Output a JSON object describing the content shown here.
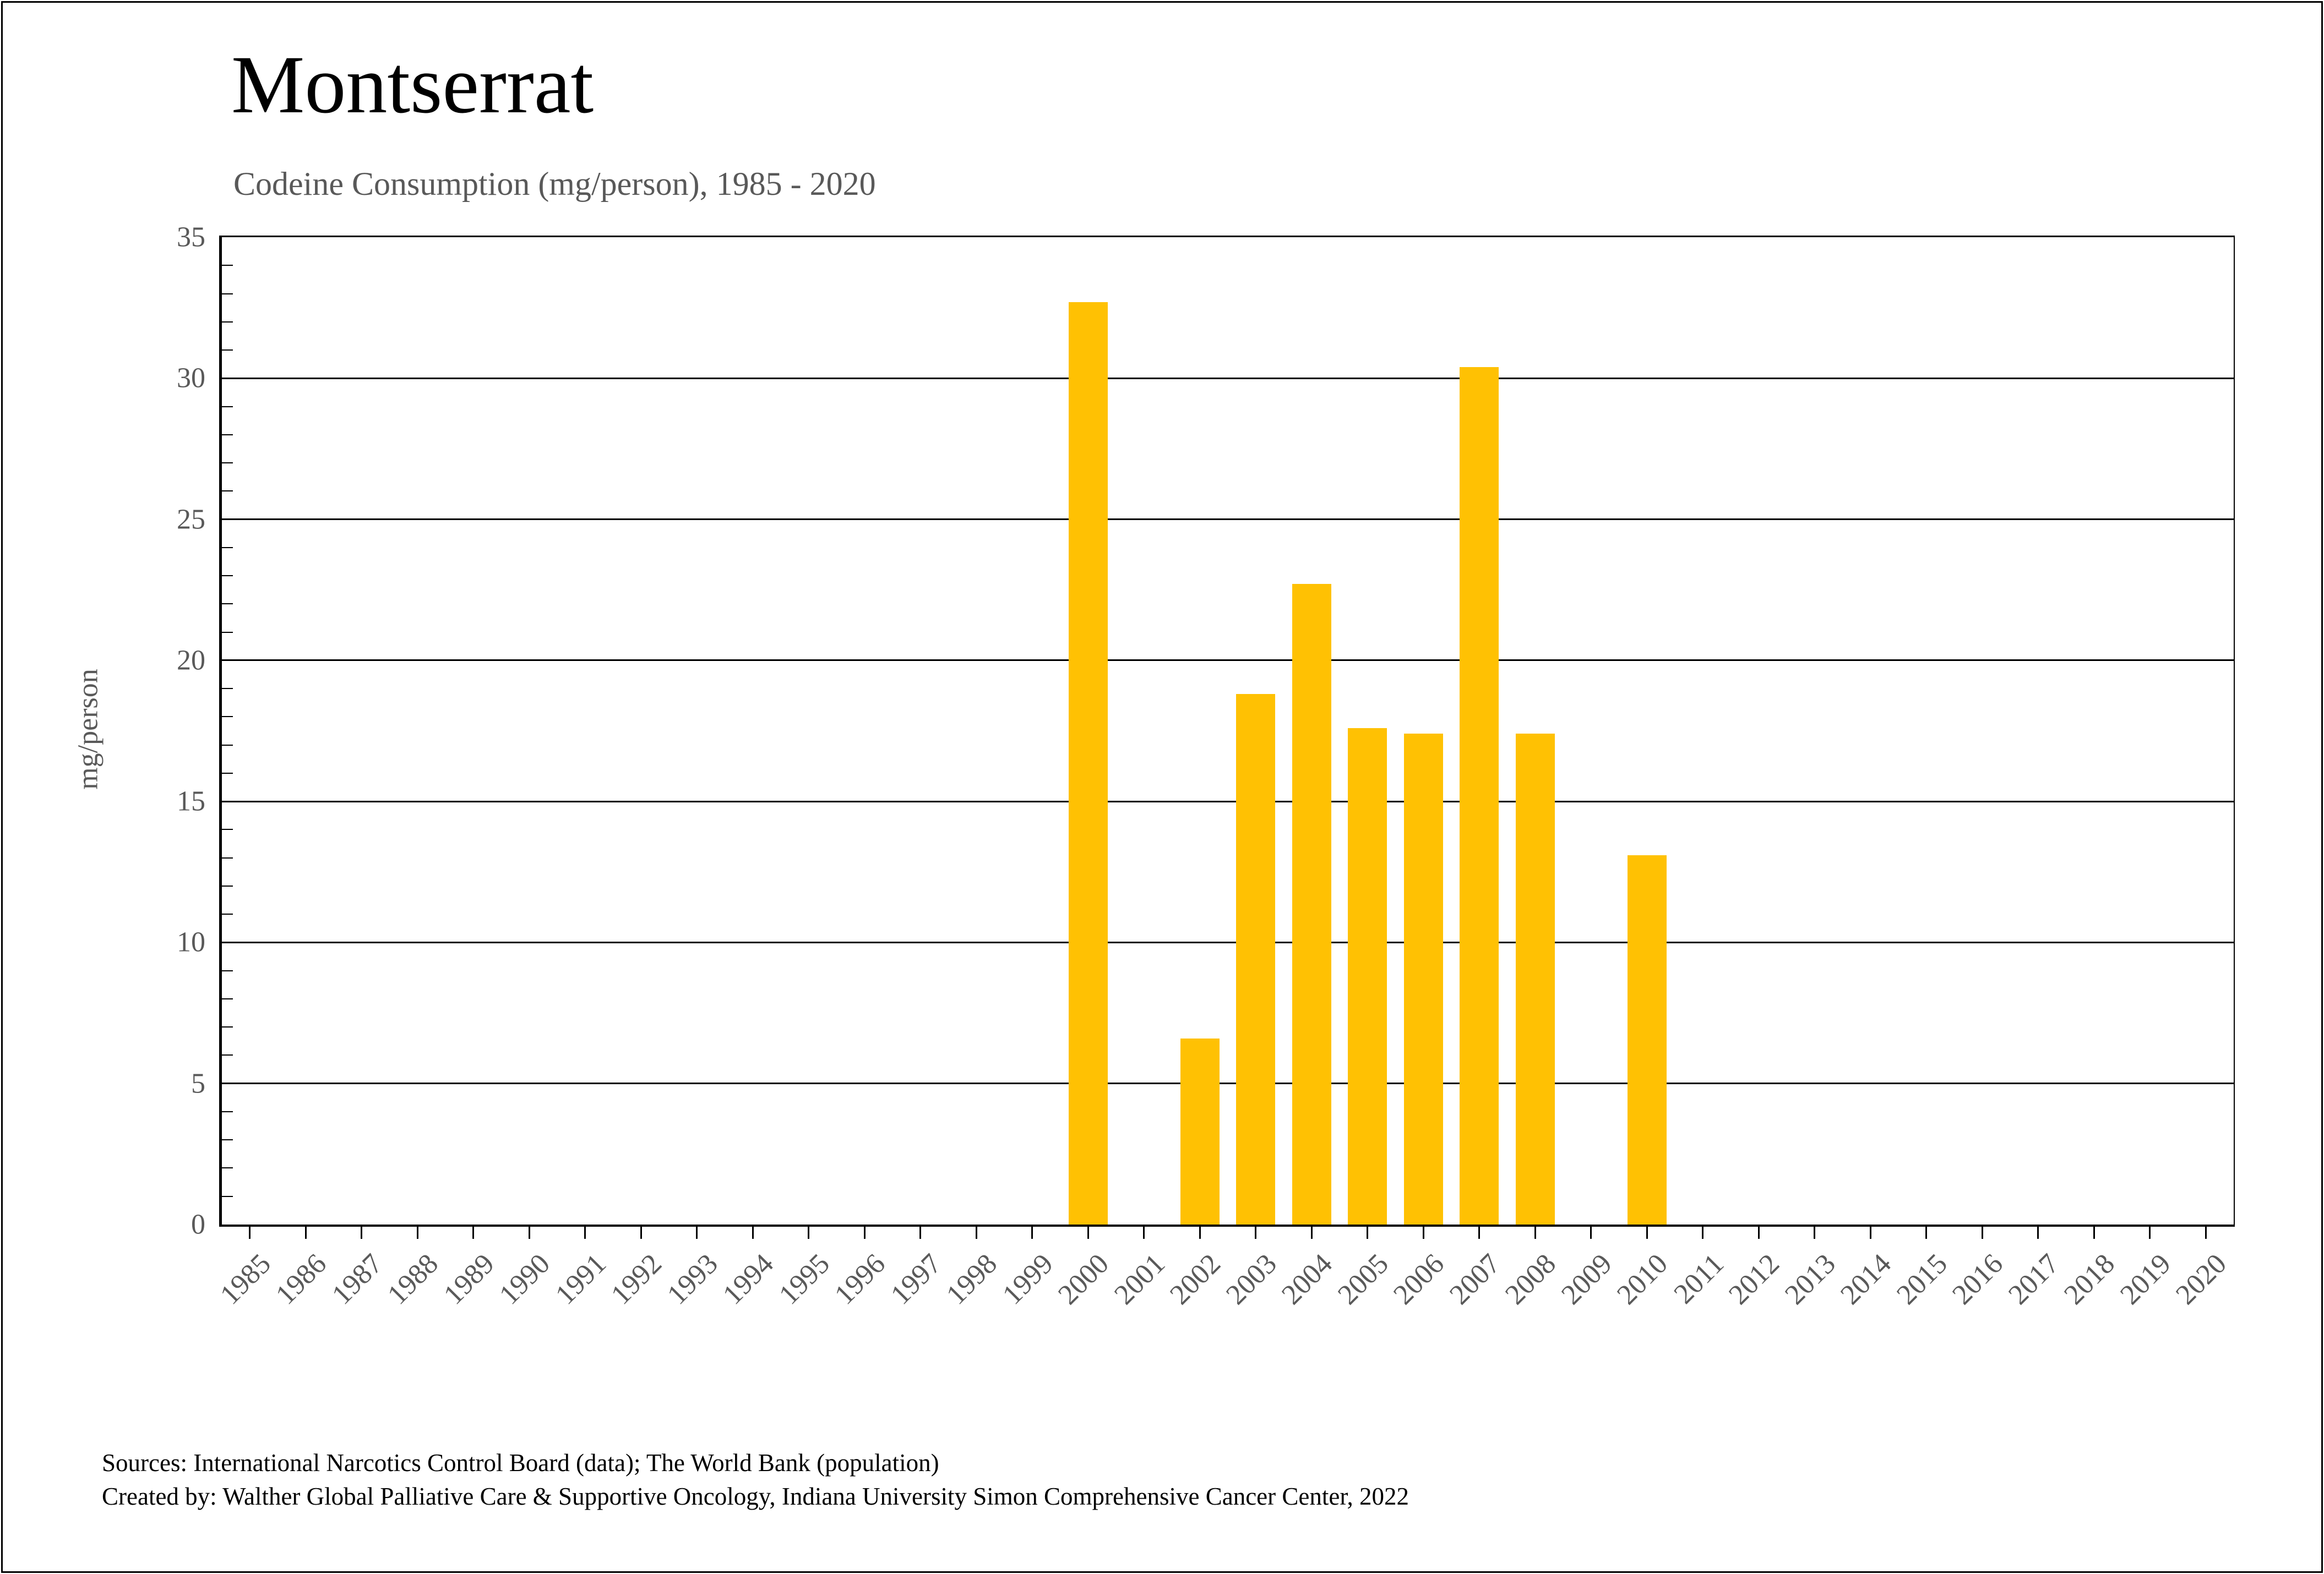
{
  "title": "Montserrat",
  "subtitle": "Codeine Consumption (mg/person), 1985 - 2020",
  "y_axis": {
    "label": "mg/person",
    "ticks": [
      0,
      5,
      10,
      15,
      20,
      25,
      30,
      35
    ],
    "gridlines": [
      5,
      10,
      15,
      20,
      25,
      30
    ],
    "minor_tick_step": 1,
    "max": 35
  },
  "footer": {
    "sources": "Sources: International Narcotics Control Board (data); The World Bank (population)",
    "created_by": "Created by: Walther Global Palliative Care & Supportive Oncology, Indiana University Simon Comprehensive Cancer Center, 2022"
  },
  "colors": {
    "bar": "#FFC103",
    "axis_text": "#595959",
    "grid": "#000000",
    "title_text": "#000000"
  },
  "chart_data": {
    "type": "bar",
    "title": "Montserrat",
    "subtitle": "Codeine Consumption (mg/person), 1985 - 2020",
    "xlabel": "",
    "ylabel": "mg/person",
    "ylim": [
      0,
      35
    ],
    "grid": "horizontal major gridlines, black, on",
    "legend": "none",
    "bar_color": "#FFC103",
    "categories": [
      "1985",
      "1986",
      "1987",
      "1988",
      "1989",
      "1990",
      "1991",
      "1992",
      "1993",
      "1994",
      "1995",
      "1996",
      "1997",
      "1998",
      "1999",
      "2000",
      "2001",
      "2002",
      "2003",
      "2004",
      "2005",
      "2006",
      "2007",
      "2008",
      "2009",
      "2010",
      "2011",
      "2012",
      "2013",
      "2014",
      "2015",
      "2016",
      "2017",
      "2018",
      "2019",
      "2020"
    ],
    "values": [
      0,
      0,
      0,
      0,
      0,
      0,
      0,
      0,
      0,
      0,
      0,
      0,
      0,
      0,
      0,
      32.7,
      0,
      6.6,
      18.8,
      22.7,
      17.6,
      17.4,
      30.4,
      17.4,
      0,
      13.1,
      0,
      0,
      0,
      0,
      0,
      0,
      0,
      0,
      0,
      0
    ]
  }
}
